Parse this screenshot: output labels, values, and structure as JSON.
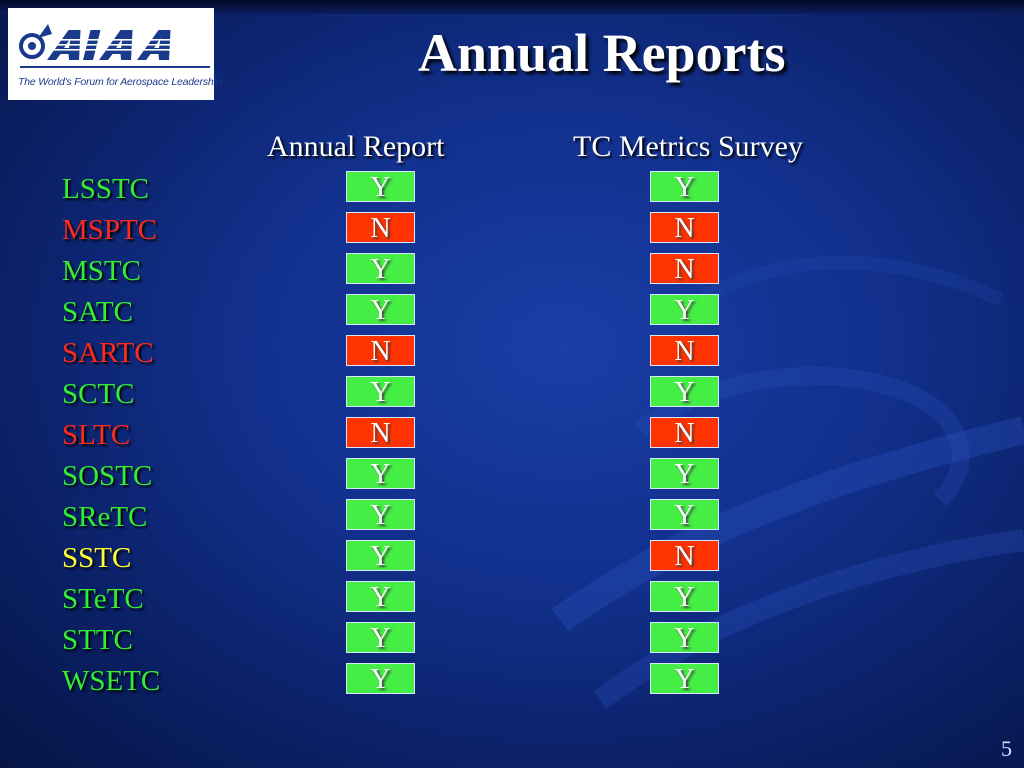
{
  "slide": {
    "title": "Annual Reports",
    "page_number": "5",
    "logo": {
      "text": "AIAA",
      "tagline": "The World's Forum for Aerospace Leadership"
    },
    "columns": [
      "Annual Report",
      "TC Metrics Survey"
    ]
  },
  "colors": {
    "green_name": "#33ee33",
    "red_name": "#ff2a1a",
    "yellow_name": "#ffff33",
    "yes_fill": "#44ee44",
    "no_fill": "#ff3300"
  },
  "rows": [
    {
      "name": "LSSTC",
      "name_color": "green",
      "annual": "Y",
      "survey": "Y"
    },
    {
      "name": "MSPTC",
      "name_color": "red",
      "annual": "N",
      "survey": "N"
    },
    {
      "name": "MSTC",
      "name_color": "green",
      "annual": "Y",
      "survey": "N"
    },
    {
      "name": "SATC",
      "name_color": "green",
      "annual": "Y",
      "survey": "Y"
    },
    {
      "name": "SARTC",
      "name_color": "red",
      "annual": "N",
      "survey": "N"
    },
    {
      "name": "SCTC",
      "name_color": "green",
      "annual": "Y",
      "survey": "Y"
    },
    {
      "name": "SLTC",
      "name_color": "red",
      "annual": "N",
      "survey": "N"
    },
    {
      "name": "SOSTC",
      "name_color": "green",
      "annual": "Y",
      "survey": "Y"
    },
    {
      "name": "SReTC",
      "name_color": "green",
      "annual": "Y",
      "survey": "Y"
    },
    {
      "name": "SSTC",
      "name_color": "yellow",
      "annual": "Y",
      "survey": "N"
    },
    {
      "name": "STeTC",
      "name_color": "green",
      "annual": "Y",
      "survey": "Y"
    },
    {
      "name": "STTC",
      "name_color": "green",
      "annual": "Y",
      "survey": "Y"
    },
    {
      "name": "WSETC",
      "name_color": "green",
      "annual": "Y",
      "survey": "Y"
    }
  ]
}
